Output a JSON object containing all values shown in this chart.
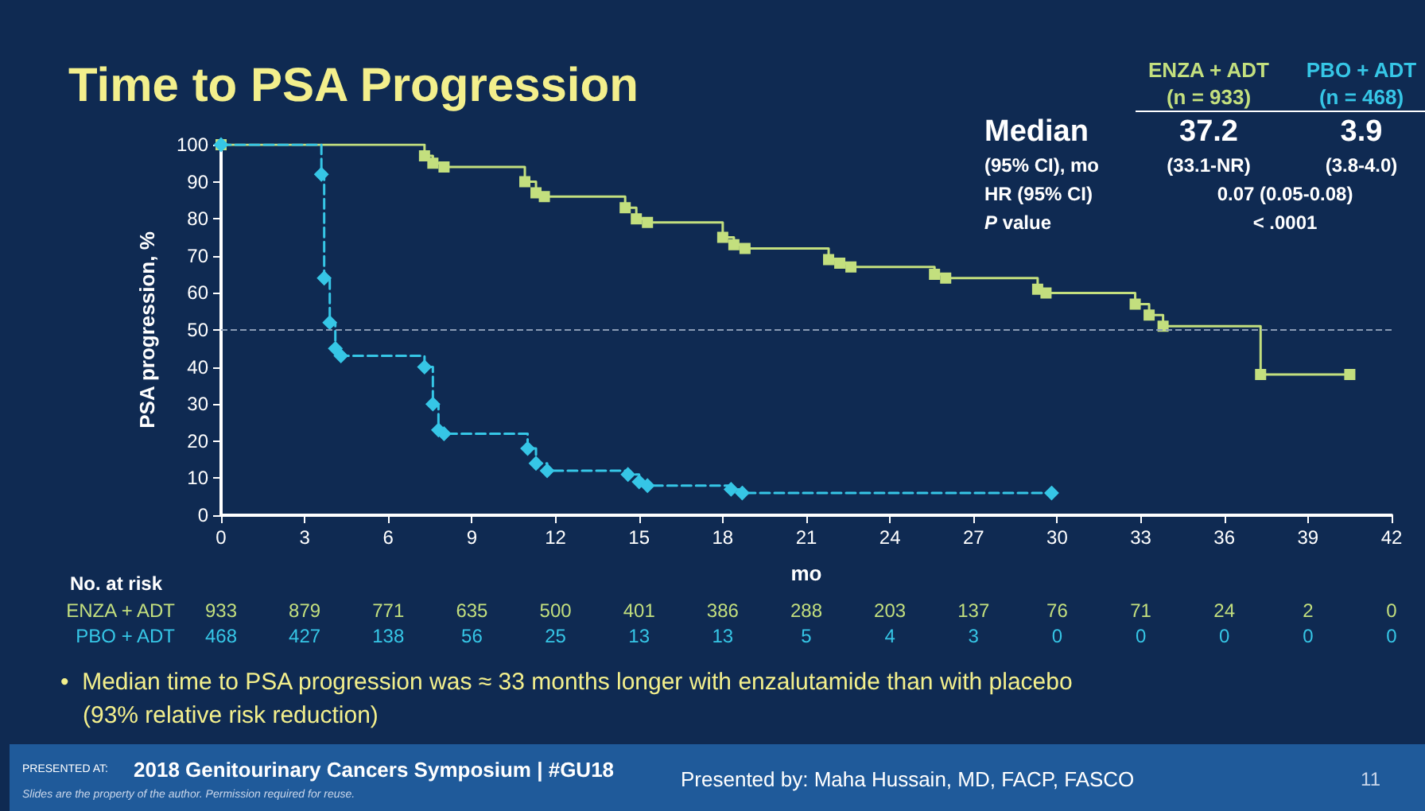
{
  "chart_data": {
    "type": "step",
    "title": "Time to PSA Progression",
    "xlabel": "mo",
    "ylabel": "PSA progression, %",
    "xlim": [
      0,
      42
    ],
    "xticks": [
      0,
      3,
      6,
      9,
      12,
      15,
      18,
      21,
      24,
      27,
      30,
      33,
      36,
      39,
      42
    ],
    "ylim": [
      0,
      100
    ],
    "yticks": [
      0,
      10,
      20,
      30,
      40,
      50,
      60,
      70,
      80,
      90,
      100
    ],
    "grid": false,
    "legend": false,
    "ref_lines": [
      {
        "axis": "y",
        "value": 50,
        "label": null,
        "color": "#8a9bb5",
        "line_style": "dashed"
      }
    ],
    "series": [
      {
        "name": "ENZA + ADT",
        "color": "#c3df7e",
        "marker": "square",
        "line_style": "solid",
        "x": [
          0,
          7.3,
          7.6,
          8.0,
          10.9,
          11.3,
          11.6,
          14.5,
          14.9,
          15.3,
          18.0,
          18.4,
          18.8,
          21.8,
          22.2,
          22.6,
          25.6,
          26.0,
          29.3,
          29.6,
          32.8,
          33.3,
          33.8,
          37.3,
          40.5
        ],
        "values": [
          100,
          97,
          95,
          94,
          90,
          87,
          86,
          83,
          80,
          79,
          75,
          73,
          72,
          69,
          68,
          67,
          65,
          64,
          61,
          60,
          57,
          54,
          51,
          38,
          38
        ]
      },
      {
        "name": "PBO + ADT",
        "color": "#36c6e6",
        "marker": "diamond",
        "line_style": "dashed",
        "x": [
          0,
          3.6,
          3.7,
          3.9,
          4.1,
          4.3,
          7.3,
          7.6,
          7.8,
          8.0,
          11.0,
          11.3,
          11.7,
          14.6,
          15.0,
          15.3,
          18.3,
          18.7,
          29.8
        ],
        "values": [
          100,
          92,
          64,
          52,
          45,
          43,
          40,
          30,
          23,
          22,
          18,
          14,
          12,
          11,
          9,
          8,
          7,
          6,
          6
        ]
      }
    ],
    "annotations": [
      "(n = 933)",
      "(n = 468)",
      "Median",
      "37.2",
      "3.9",
      "(95% CI), mo",
      "(33.1-NR)",
      "(3.8-4.0)",
      "HR (95% CI)",
      "0.07 (0.05-0.08)",
      "P value",
      "< .0001",
      "No. at risk",
      "933 879 771 635 500 401 386 288 203 137 76 71 24 2 0",
      "468 427 138 56 25 13 13 5 4 3 0 0 0 0 0",
      "•  Median time to PSA progression was ≈ 33 months longer with enzalutamide than with placebo",
      "(93% relative risk reduction)",
      "PRESENTED AT:",
      "2018 Genitourinary Cancers Symposium | #GU18",
      "Presented by: Maha Hussain, MD, FACP, FASCO",
      "11",
      "Slides are the property of the author. Permission required for reuse."
    ]
  }
}
